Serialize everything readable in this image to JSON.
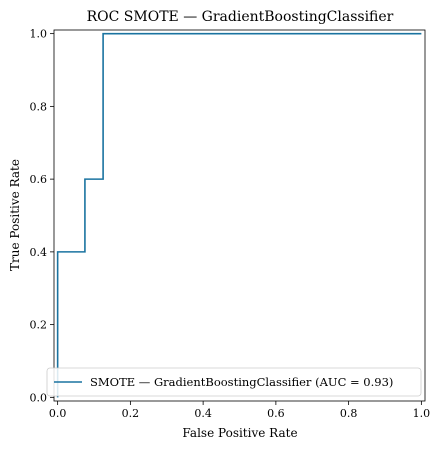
{
  "chart_data": {
    "type": "line",
    "title": "ROC SMOTE — GradientBoostingClassifier",
    "xlabel": "False Positive Rate",
    "ylabel": "True Positive Rate",
    "xlim": [
      -0.01,
      1.01
    ],
    "ylim": [
      -0.01,
      1.01
    ],
    "xticks": [
      "0.0",
      "0.2",
      "0.4",
      "0.6",
      "0.8",
      "1.0"
    ],
    "yticks": [
      "0.0",
      "0.2",
      "0.4",
      "0.6",
      "0.8",
      "1.0"
    ],
    "grid": false,
    "legend_position": "lower-right",
    "series": [
      {
        "name": "SMOTE — GradientBoostingClassifier (AUC = 0.93)",
        "color": "#1a73a0",
        "x": [
          0.0,
          0.0,
          0.0,
          0.075,
          0.075,
          0.125,
          0.125,
          1.0
        ],
        "y": [
          0.0,
          0.4,
          0.4,
          0.4,
          0.6,
          0.6,
          1.0,
          1.0
        ]
      }
    ]
  }
}
